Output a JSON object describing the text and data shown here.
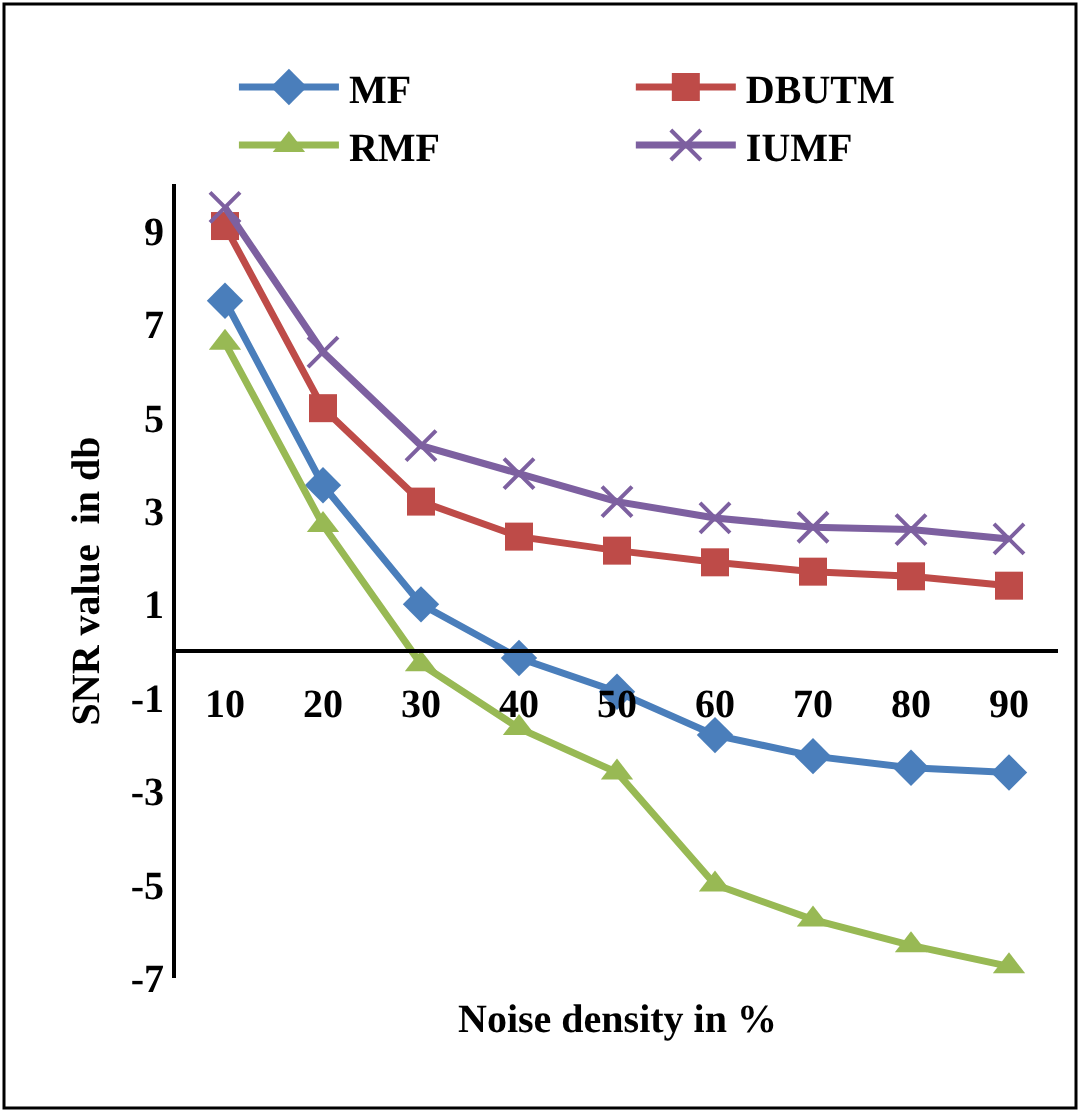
{
  "chart_data": {
    "type": "line",
    "xlabel": "Noise density in %",
    "ylabel": "SNR value  in db",
    "categories": [
      "10",
      "20",
      "30",
      "40",
      "50",
      "60",
      "70",
      "80",
      "90"
    ],
    "series": [
      {
        "name": "MF",
        "color": "#4a7ebb",
        "marker": "diamond",
        "values": [
          7.5,
          3.55,
          1.0,
          -0.15,
          -0.87,
          -1.8,
          -2.25,
          -2.5,
          -2.6
        ]
      },
      {
        "name": "DBUTM",
        "color": "#be4b48",
        "marker": "square",
        "values": [
          9.1,
          5.2,
          3.2,
          2.45,
          2.15,
          1.9,
          1.7,
          1.6,
          1.4
        ]
      },
      {
        "name": "RMF",
        "color": "#98b954",
        "marker": "triangle",
        "values": [
          6.6,
          2.7,
          -0.28,
          -1.65,
          -2.6,
          -5.0,
          -5.75,
          -6.3,
          -6.75
        ]
      },
      {
        "name": "IUMF",
        "color": "#7d60a0",
        "marker": "cross",
        "values": [
          9.5,
          6.4,
          4.4,
          3.8,
          3.2,
          2.85,
          2.65,
          2.6,
          2.4
        ]
      }
    ],
    "ylim": [
      -7,
      10
    ],
    "yticks": [
      -7,
      -5,
      -3,
      -1,
      1,
      3,
      5,
      7,
      9
    ],
    "legend": "top"
  }
}
